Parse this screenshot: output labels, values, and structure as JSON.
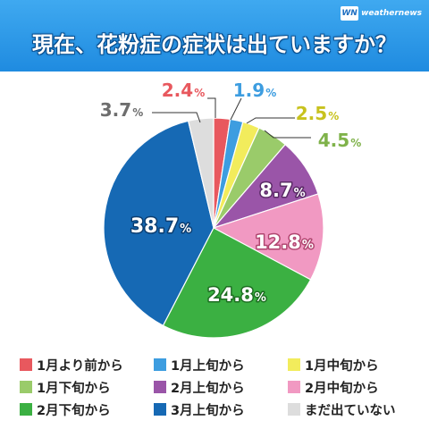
{
  "title": "現在、花粉症の症状は出ていますか？",
  "brand": {
    "mark": "WN",
    "text": "weathernews"
  },
  "chart_data": {
    "type": "pie",
    "start": "top",
    "direction": "clockwise",
    "categories": [
      "1月より前から",
      "1月上旬から",
      "1月中旬から",
      "1月下旬から",
      "2月上旬から",
      "2月中旬から",
      "2月下旬から",
      "3月上旬から",
      "まだ出ていない"
    ],
    "values": [
      2.4,
      1.9,
      2.5,
      4.5,
      8.7,
      12.8,
      24.8,
      38.7,
      3.7
    ],
    "labels": [
      "2.4",
      "1.9",
      "2.5",
      "4.5",
      "8.7",
      "12.8",
      "24.8",
      "38.7",
      "3.7"
    ],
    "unit": "%",
    "colors": [
      "#e8585e",
      "#3d9de0",
      "#f2ec5c",
      "#9acb6a",
      "#9a55a8",
      "#f199c2",
      "#3bb042",
      "#1669b4",
      "#dddddd"
    ],
    "legend": "bottom"
  }
}
